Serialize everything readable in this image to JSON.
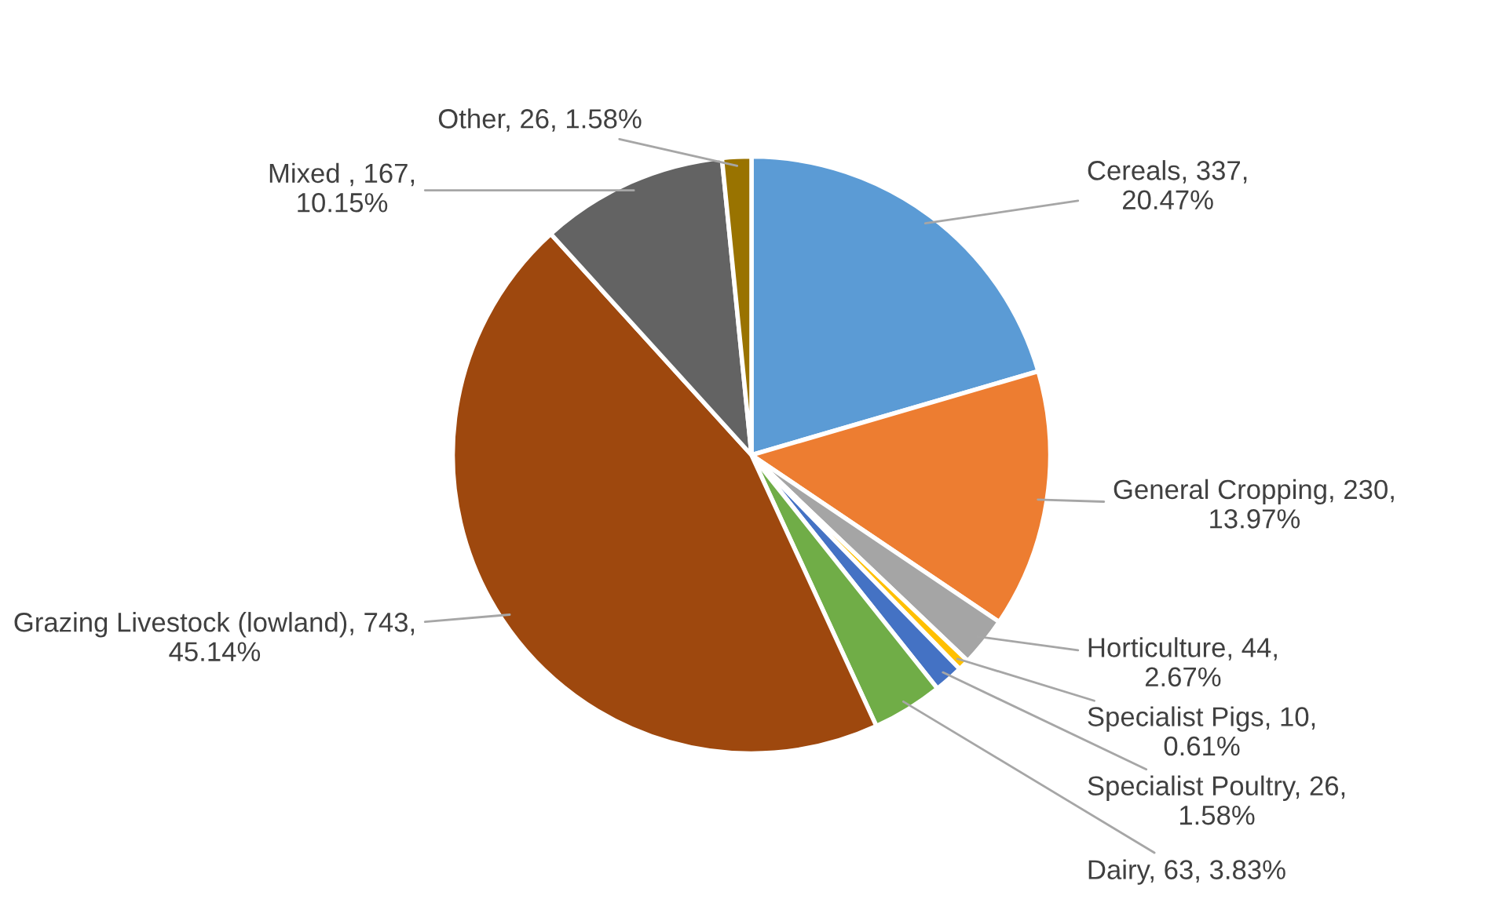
{
  "chart_data": {
    "type": "pie",
    "categories": [
      "Cereals",
      "General Cropping",
      "Horticulture",
      "Specialist Pigs",
      "Specialist Poultry",
      "Dairy",
      "Grazing Livestock (lowland)",
      "Mixed ",
      "Other"
    ],
    "values": [
      337,
      230,
      44,
      10,
      26,
      63,
      743,
      167,
      26
    ],
    "value_labels": [
      "337,\n20.47%",
      "230,\n13.97%",
      "44,\n2.67%",
      "10,\n0.61%",
      "26,\n1.58%",
      "63, 3.83%",
      "743,\n45.14%",
      "167,\n10.15%",
      "26, 1.58%"
    ],
    "colors": [
      "#5b9bd5",
      "#ed7d31",
      "#a5a5a5",
      "#ffc000",
      "#4472c4",
      "#70ad47",
      "#9e480e",
      "#636363",
      "#997300"
    ]
  }
}
